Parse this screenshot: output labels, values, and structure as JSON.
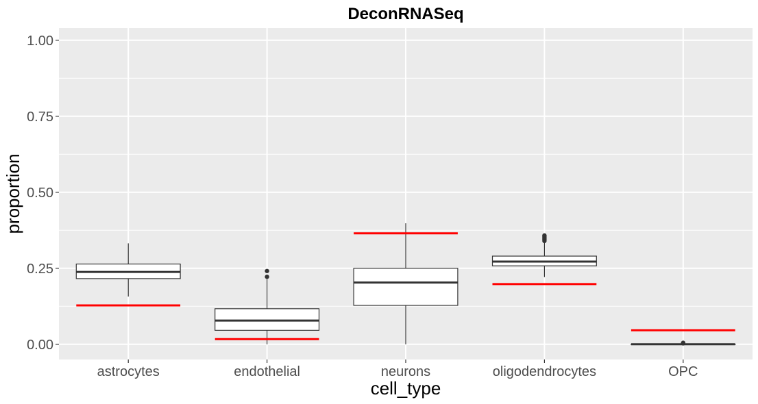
{
  "chart_data": {
    "type": "boxplot",
    "title": "DeconRNASeq",
    "xlabel": "cell_type",
    "ylabel": "proportion",
    "categories": [
      "astrocytes",
      "endothelial",
      "neurons",
      "oligodendrocytes",
      "OPC"
    ],
    "ylim": [
      -0.05,
      1.04
    ],
    "yticks": [
      0.0,
      0.25,
      0.5,
      0.75,
      1.0
    ],
    "ytick_labels": [
      "0.00",
      "0.25",
      "0.50",
      "0.75",
      "1.00"
    ],
    "grid": true,
    "legend": "none",
    "boxes": [
      {
        "category": "astrocytes",
        "whisker_low": 0.157,
        "q1": 0.216,
        "median": 0.238,
        "q3": 0.264,
        "whisker_high": 0.332,
        "outliers": []
      },
      {
        "category": "endothelial",
        "whisker_low": 0.0,
        "q1": 0.046,
        "median": 0.078,
        "q3": 0.117,
        "whisker_high": 0.214,
        "outliers": [
          0.222,
          0.241
        ]
      },
      {
        "category": "neurons",
        "whisker_low": 0.0,
        "q1": 0.128,
        "median": 0.203,
        "q3": 0.25,
        "whisker_high": 0.398,
        "outliers": []
      },
      {
        "category": "oligodendrocytes",
        "whisker_low": 0.221,
        "q1": 0.258,
        "median": 0.272,
        "q3": 0.29,
        "whisker_high": 0.334,
        "outliers": [
          0.34,
          0.344,
          0.348,
          0.352,
          0.356,
          0.358
        ]
      },
      {
        "category": "OPC",
        "whisker_low": 0.0,
        "q1": 0.0,
        "median": 0.0,
        "q3": 0.0,
        "whisker_high": 0.0,
        "outliers": [
          0.003,
          0.005
        ]
      }
    ],
    "reference_lines": {
      "color": "#ff0000",
      "values": [
        0.128,
        0.017,
        0.365,
        0.198,
        0.046
      ]
    },
    "colors": {
      "panel": "#ebebeb",
      "grid": "#ffffff",
      "box_fill": "#ffffff",
      "box_stroke": "#333333"
    }
  }
}
